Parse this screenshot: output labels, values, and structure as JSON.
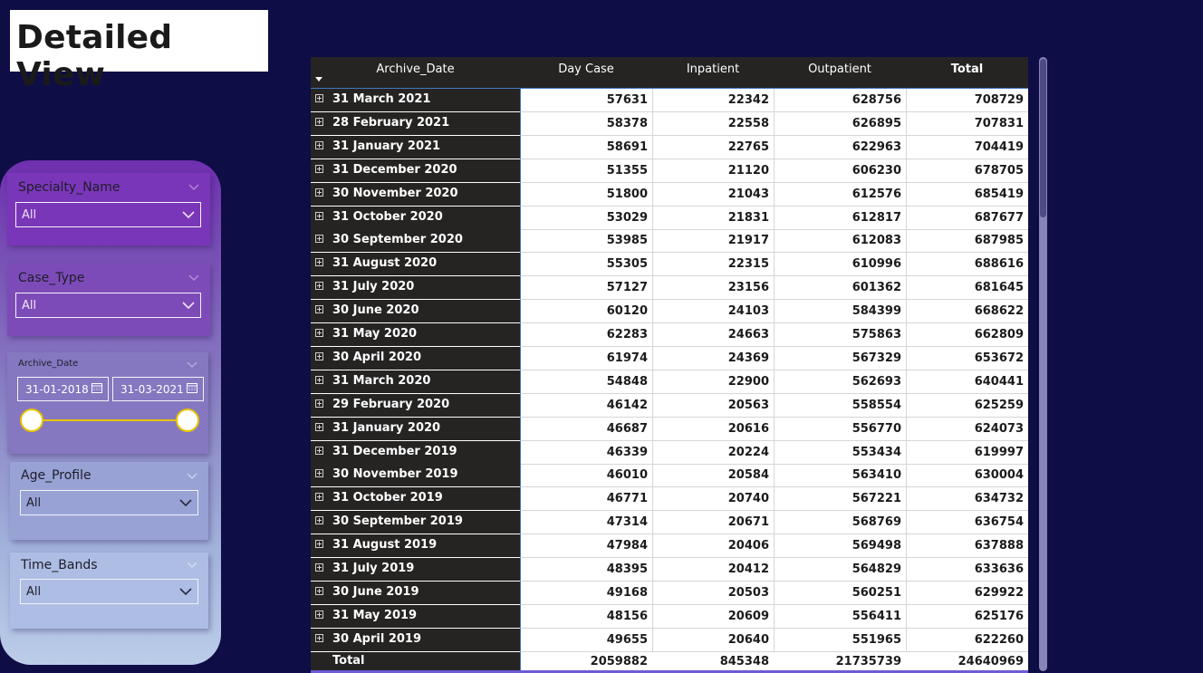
{
  "page": {
    "title": "Detailed View"
  },
  "slicers": {
    "specialty": {
      "title": "Specialty_Name",
      "value": "All"
    },
    "case_type": {
      "title": "Case_Type",
      "value": "All"
    },
    "archive_date": {
      "title": "Archive_Date",
      "start": "31-01-2018",
      "end": "31-03-2021"
    },
    "age_profile": {
      "title": "Age_Profile",
      "value": "All"
    },
    "time_bands": {
      "title": "Time_Bands",
      "value": "All"
    }
  },
  "table": {
    "headers": {
      "archive_date": "Archive_Date",
      "day_case": "Day Case",
      "inpatient": "Inpatient",
      "outpatient": "Outpatient",
      "total": "Total"
    },
    "rows": [
      {
        "date": "31 March 2021",
        "day_case": "57631",
        "inpatient": "22342",
        "outpatient": "628756",
        "total": "708729"
      },
      {
        "date": "28 February 2021",
        "day_case": "58378",
        "inpatient": "22558",
        "outpatient": "626895",
        "total": "707831"
      },
      {
        "date": "31 January 2021",
        "day_case": "58691",
        "inpatient": "22765",
        "outpatient": "622963",
        "total": "704419"
      },
      {
        "date": "31 December 2020",
        "day_case": "51355",
        "inpatient": "21120",
        "outpatient": "606230",
        "total": "678705"
      },
      {
        "date": "30 November 2020",
        "day_case": "51800",
        "inpatient": "21043",
        "outpatient": "612576",
        "total": "685419"
      },
      {
        "date": "31 October 2020",
        "day_case": "53029",
        "inpatient": "21831",
        "outpatient": "612817",
        "total": "687677"
      },
      {
        "date": "30 September 2020",
        "day_case": "53985",
        "inpatient": "21917",
        "outpatient": "612083",
        "total": "687985"
      },
      {
        "date": "31 August 2020",
        "day_case": "55305",
        "inpatient": "22315",
        "outpatient": "610996",
        "total": "688616"
      },
      {
        "date": "31 July 2020",
        "day_case": "57127",
        "inpatient": "23156",
        "outpatient": "601362",
        "total": "681645"
      },
      {
        "date": "30 June 2020",
        "day_case": "60120",
        "inpatient": "24103",
        "outpatient": "584399",
        "total": "668622"
      },
      {
        "date": "31 May 2020",
        "day_case": "62283",
        "inpatient": "24663",
        "outpatient": "575863",
        "total": "662809"
      },
      {
        "date": "30 April 2020",
        "day_case": "61974",
        "inpatient": "24369",
        "outpatient": "567329",
        "total": "653672"
      },
      {
        "date": "31 March 2020",
        "day_case": "54848",
        "inpatient": "22900",
        "outpatient": "562693",
        "total": "640441"
      },
      {
        "date": "29 February 2020",
        "day_case": "46142",
        "inpatient": "20563",
        "outpatient": "558554",
        "total": "625259"
      },
      {
        "date": "31 January 2020",
        "day_case": "46687",
        "inpatient": "20616",
        "outpatient": "556770",
        "total": "624073"
      },
      {
        "date": "31 December 2019",
        "day_case": "46339",
        "inpatient": "20224",
        "outpatient": "553434",
        "total": "619997"
      },
      {
        "date": "30 November 2019",
        "day_case": "46010",
        "inpatient": "20584",
        "outpatient": "563410",
        "total": "630004"
      },
      {
        "date": "31 October 2019",
        "day_case": "46771",
        "inpatient": "20740",
        "outpatient": "567221",
        "total": "634732"
      },
      {
        "date": "30 September 2019",
        "day_case": "47314",
        "inpatient": "20671",
        "outpatient": "568769",
        "total": "636754"
      },
      {
        "date": "31 August 2019",
        "day_case": "47984",
        "inpatient": "20406",
        "outpatient": "569498",
        "total": "637888"
      },
      {
        "date": "31 July 2019",
        "day_case": "48395",
        "inpatient": "20412",
        "outpatient": "564829",
        "total": "633636"
      },
      {
        "date": "30 June 2019",
        "day_case": "49168",
        "inpatient": "20503",
        "outpatient": "560251",
        "total": "629922"
      },
      {
        "date": "31 May 2019",
        "day_case": "48156",
        "inpatient": "20609",
        "outpatient": "556411",
        "total": "625176"
      },
      {
        "date": "30 April 2019",
        "day_case": "49655",
        "inpatient": "20640",
        "outpatient": "551965",
        "total": "622260"
      }
    ],
    "totals": {
      "label": "Total",
      "day_case": "2059882",
      "inpatient": "845348",
      "outpatient": "21735739",
      "total": "24640969"
    }
  },
  "colors": {
    "page_background": "#0e0d45",
    "header_background": "#252423",
    "slider_accent": "#e8c300"
  }
}
